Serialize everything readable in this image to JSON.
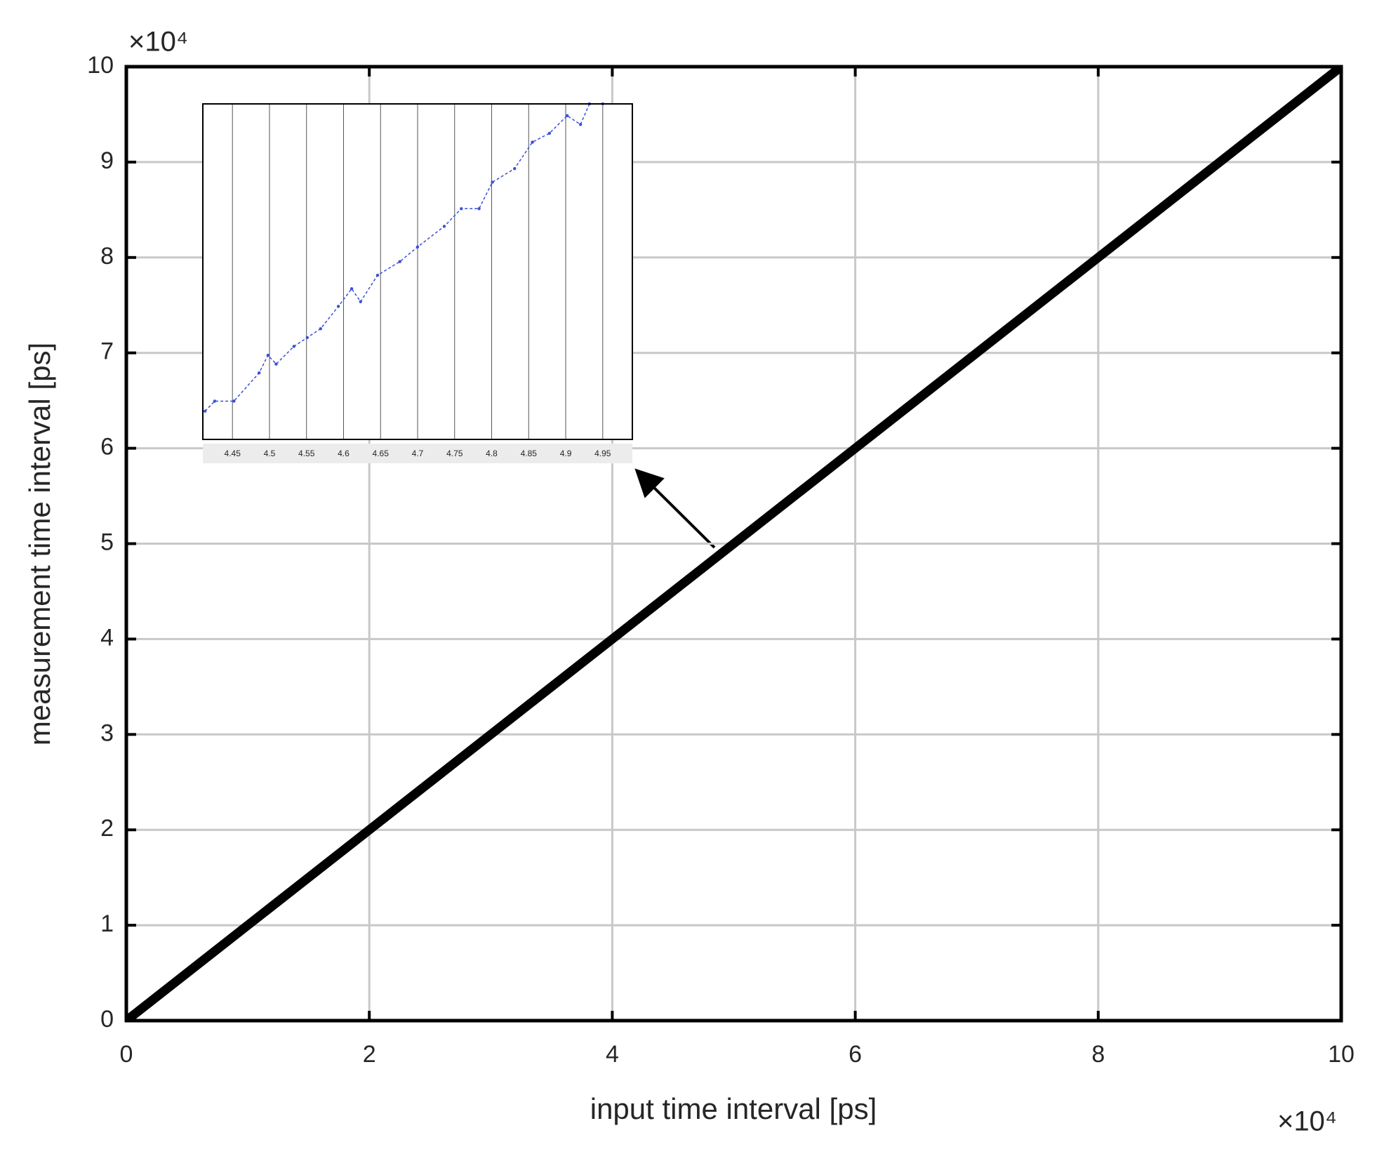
{
  "chart_data": [
    {
      "type": "line",
      "xlabel": "input time interval [ps]",
      "ylabel": "measurement time interval [ps]",
      "x_scale_label": "×10⁴",
      "y_scale_label": "×10⁴",
      "x": [
        0,
        10
      ],
      "values": [
        0,
        10
      ],
      "color": "#000000",
      "xlim": [
        0,
        10
      ],
      "xticks": [
        0,
        2,
        4,
        6,
        8,
        10
      ],
      "ylim": [
        0,
        10
      ],
      "yticks": [
        0,
        1,
        2,
        3,
        4,
        5,
        6,
        7,
        8,
        9,
        10
      ],
      "grid": true
    },
    {
      "type": "line",
      "x": [
        4.413,
        4.426,
        4.452,
        4.486,
        4.498,
        4.509,
        4.533,
        4.551,
        4.569,
        4.593,
        4.611,
        4.623,
        4.646,
        4.676,
        4.7,
        4.736,
        4.759,
        4.783,
        4.801,
        4.831,
        4.855,
        4.878,
        4.902,
        4.92,
        4.932,
        4.95
      ],
      "values": [
        4.448,
        4.465,
        4.465,
        4.513,
        4.543,
        4.528,
        4.558,
        4.573,
        4.588,
        4.626,
        4.656,
        4.634,
        4.679,
        4.702,
        4.727,
        4.762,
        4.792,
        4.792,
        4.837,
        4.86,
        4.905,
        4.92,
        4.95,
        4.935,
        4.97,
        4.97
      ],
      "color": "#3b4fd8",
      "xlim": [
        4.41,
        4.99
      ],
      "xticks": [
        4.45,
        4.5,
        4.55,
        4.6,
        4.65,
        4.7,
        4.75,
        4.8,
        4.85,
        4.9,
        4.95
      ],
      "ylim": [
        4.4,
        4.97
      ],
      "grid": true
    }
  ]
}
